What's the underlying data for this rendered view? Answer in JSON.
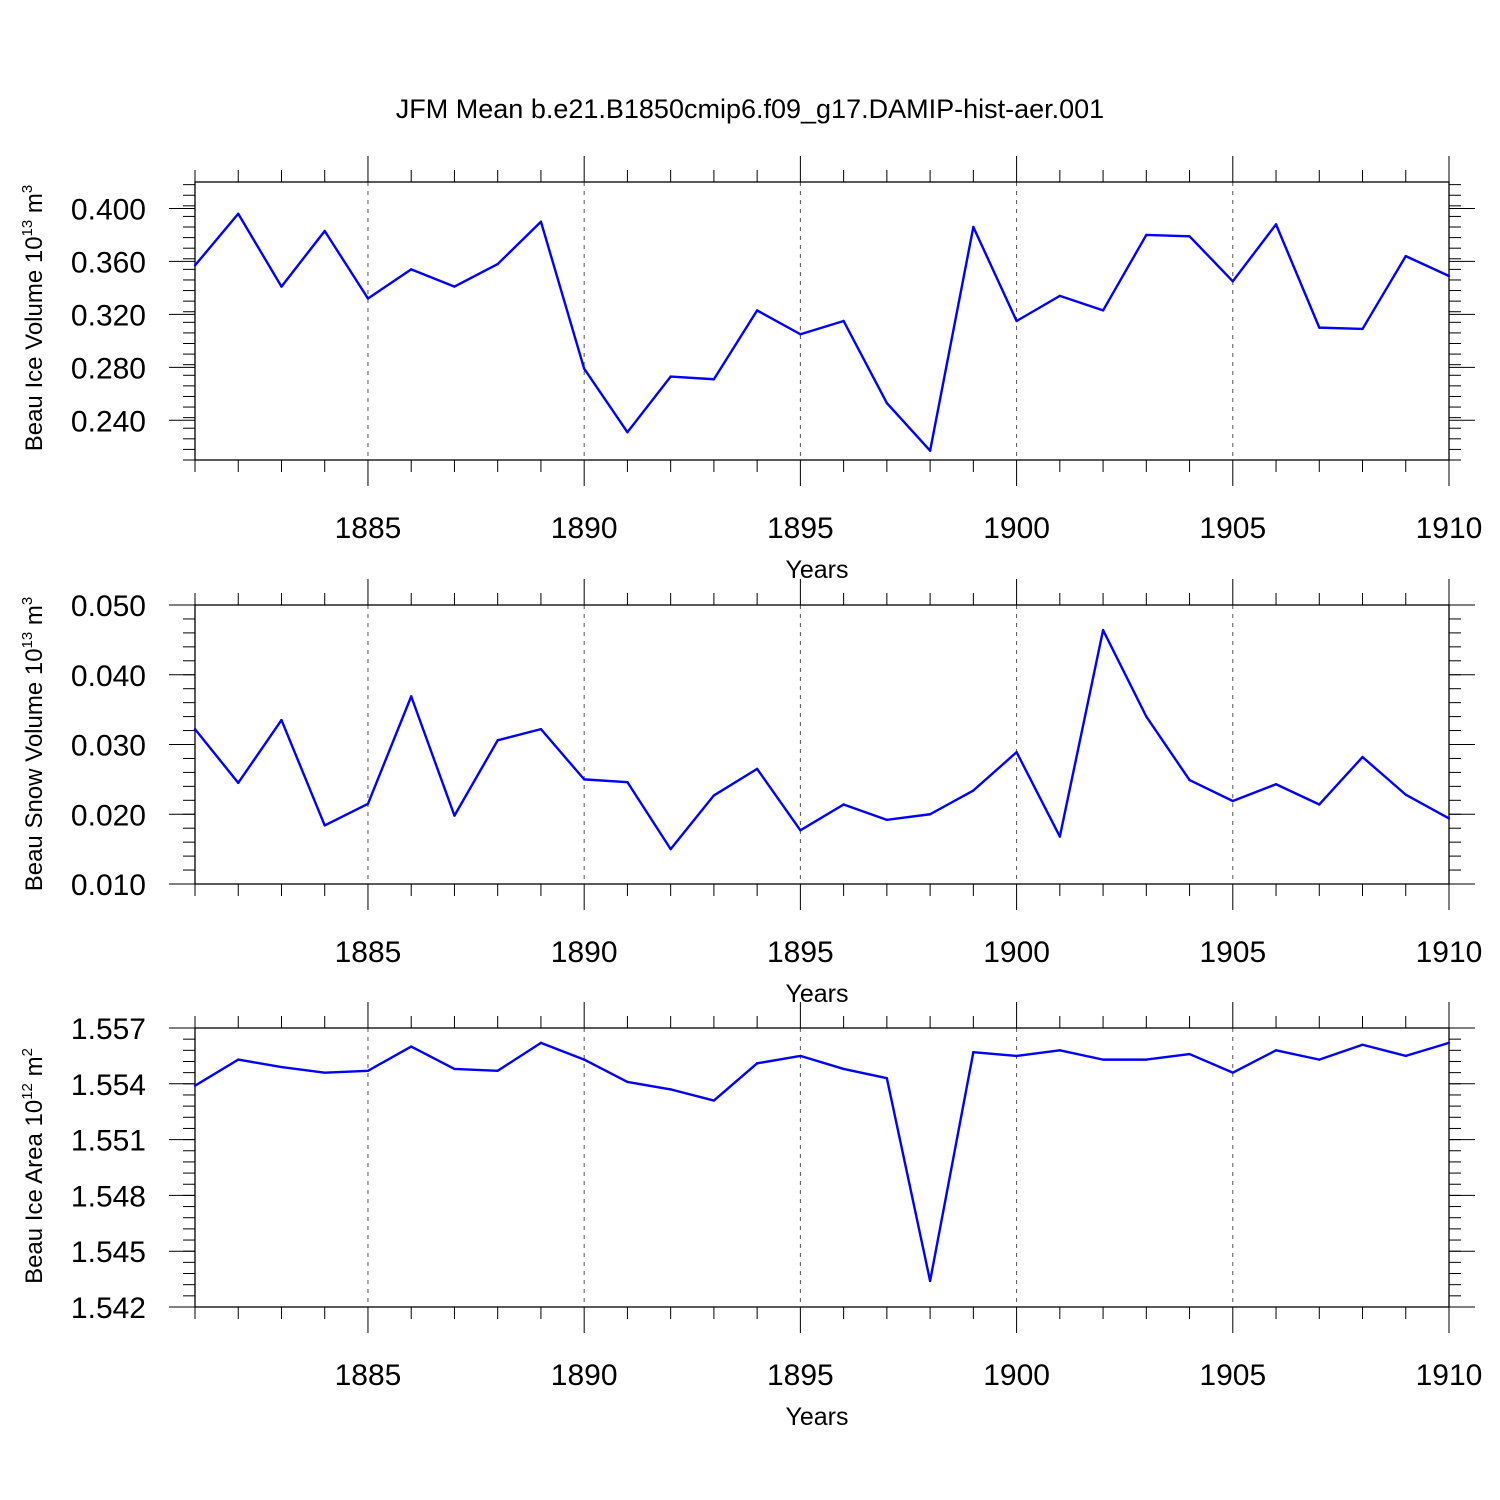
{
  "title": "JFM Mean b.e21.B1850cmip6.f09_g17.DAMIP-hist-aer.001",
  "colors": {
    "line": "#0000ff",
    "axis": "#000000",
    "grid": "#555555"
  },
  "chart_data": [
    {
      "type": "line",
      "title": "JFM Mean b.e21.B1850cmip6.f09_g17.DAMIP-hist-aer.001",
      "xlabel": "Years",
      "ylabel": {
        "main": "Beau Ice Volume 10",
        "sup": "13",
        "mid": " m",
        "sup2": "3"
      },
      "xlim": [
        1881,
        1910
      ],
      "ylim": [
        0.21,
        0.42
      ],
      "xticks": [
        1885,
        1890,
        1895,
        1900,
        1905,
        1910
      ],
      "xtick_labels": [
        "1885",
        "1890",
        "1895",
        "1900",
        "1905",
        "1910"
      ],
      "yticks": [
        0.24,
        0.28,
        0.32,
        0.36,
        0.4
      ],
      "ytick_labels": [
        "0.240",
        "0.280",
        "0.320",
        "0.360",
        "0.400"
      ],
      "yminor": 0.008,
      "grid": "vertical-dashed",
      "x": [
        1881,
        1882,
        1883,
        1884,
        1885,
        1886,
        1887,
        1888,
        1889,
        1890,
        1891,
        1892,
        1893,
        1894,
        1895,
        1896,
        1897,
        1898,
        1899,
        1900,
        1901,
        1902,
        1903,
        1904,
        1905,
        1906,
        1907,
        1908,
        1909,
        1910
      ],
      "series": [
        {
          "name": "Beau Ice Volume",
          "values": [
            0.357,
            0.396,
            0.341,
            0.383,
            0.332,
            0.354,
            0.341,
            0.358,
            0.39,
            0.279,
            0.231,
            0.273,
            0.271,
            0.323,
            0.305,
            0.315,
            0.253,
            0.217,
            0.386,
            0.315,
            0.334,
            0.323,
            0.38,
            0.379,
            0.345,
            0.388,
            0.31,
            0.309,
            0.364,
            0.349
          ]
        }
      ]
    },
    {
      "type": "line",
      "xlabel": "Years",
      "ylabel": {
        "main": "Beau Snow Volume 10",
        "sup": "13",
        "mid": " m",
        "sup2": "3"
      },
      "xlim": [
        1881,
        1910
      ],
      "ylim": [
        0.01,
        0.05
      ],
      "xticks": [
        1885,
        1890,
        1895,
        1900,
        1905,
        1910
      ],
      "xtick_labels": [
        "1885",
        "1890",
        "1895",
        "1900",
        "1905",
        "1910"
      ],
      "yticks": [
        0.01,
        0.02,
        0.03,
        0.04,
        0.05
      ],
      "ytick_labels": [
        "0.010",
        "0.020",
        "0.030",
        "0.040",
        "0.050"
      ],
      "yminor": 0.002,
      "grid": "vertical-dashed",
      "x": [
        1881,
        1882,
        1883,
        1884,
        1885,
        1886,
        1887,
        1888,
        1889,
        1890,
        1891,
        1892,
        1893,
        1894,
        1895,
        1896,
        1897,
        1898,
        1899,
        1900,
        1901,
        1902,
        1903,
        1904,
        1905,
        1906,
        1907,
        1908,
        1909,
        1910
      ],
      "series": [
        {
          "name": "Beau Snow Volume",
          "values": [
            0.0322,
            0.0245,
            0.0335,
            0.0184,
            0.0215,
            0.0369,
            0.0198,
            0.0306,
            0.0322,
            0.025,
            0.0246,
            0.015,
            0.0227,
            0.0265,
            0.0177,
            0.0214,
            0.0192,
            0.02,
            0.0234,
            0.0289,
            0.0168,
            0.0464,
            0.034,
            0.0249,
            0.0219,
            0.0243,
            0.0214,
            0.0282,
            0.0228,
            0.0194
          ]
        }
      ]
    },
    {
      "type": "line",
      "xlabel": "Years",
      "ylabel": {
        "main": "Beau Ice Area 10",
        "sup": "12",
        "mid": " m",
        "sup2": "2"
      },
      "xlim": [
        1881,
        1910
      ],
      "ylim": [
        1.542,
        1.557
      ],
      "xticks": [
        1885,
        1890,
        1895,
        1900,
        1905,
        1910
      ],
      "xtick_labels": [
        "1885",
        "1890",
        "1895",
        "1900",
        "1905",
        "1910"
      ],
      "yticks": [
        1.542,
        1.545,
        1.548,
        1.551,
        1.554,
        1.557
      ],
      "ytick_labels": [
        "1.542",
        "1.545",
        "1.548",
        "1.551",
        "1.554",
        "1.557"
      ],
      "yminor": 0.0006,
      "grid": "vertical-dashed",
      "x": [
        1881,
        1882,
        1883,
        1884,
        1885,
        1886,
        1887,
        1888,
        1889,
        1890,
        1891,
        1892,
        1893,
        1894,
        1895,
        1896,
        1897,
        1898,
        1899,
        1900,
        1901,
        1902,
        1903,
        1904,
        1905,
        1906,
        1907,
        1908,
        1909,
        1910
      ],
      "series": [
        {
          "name": "Beau Ice Area",
          "values": [
            1.5539,
            1.5553,
            1.5549,
            1.5546,
            1.5547,
            1.556,
            1.5548,
            1.5547,
            1.5562,
            1.5553,
            1.5541,
            1.5537,
            1.5531,
            1.5551,
            1.5555,
            1.5548,
            1.5543,
            1.5434,
            1.5557,
            1.5555,
            1.5558,
            1.5553,
            1.5553,
            1.5556,
            1.5546,
            1.5558,
            1.5553,
            1.5561,
            1.5555,
            1.5562
          ]
        }
      ]
    }
  ]
}
